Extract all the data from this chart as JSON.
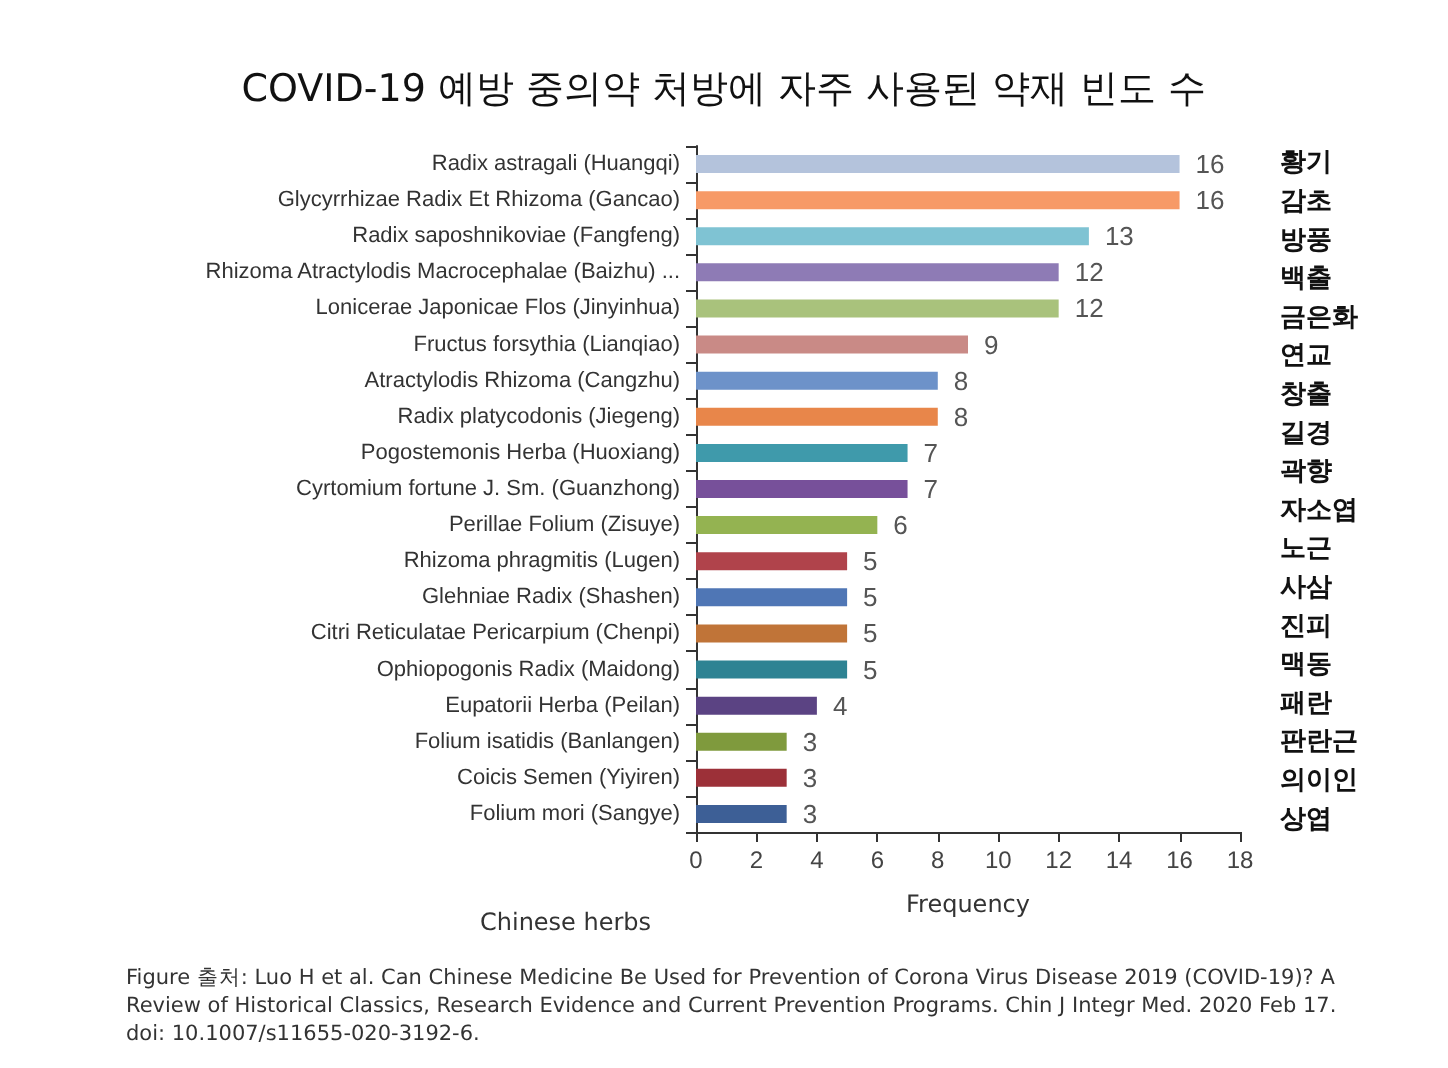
{
  "chart_data": {
    "type": "bar",
    "orientation": "horizontal",
    "title": "COVID-19 예방 중의약 처방에 자주 사용된 약재 빈도 수",
    "xlabel": "Frequency",
    "ylabel": "Chinese herbs",
    "categories": [
      "Radix astragali (Huangqi)",
      "Glycyrrhizae Radix Et Rhizoma (Gancao)",
      "Radix saposhnikoviae (Fangfeng)",
      "Rhizoma Atractylodis Macrocephalae (Baizhu) ...",
      "Lonicerae Japonicae Flos (Jinyinhua)",
      "Fructus forsythia (Lianqiao)",
      "Atractylodis Rhizoma (Cangzhu)",
      "Radix platycodonis (Jiegeng)",
      "Pogostemonis Herba (Huoxiang)",
      "Cyrtomium fortune J. Sm. (Guanzhong)",
      "Perillae Folium (Zisuye)",
      "Rhizoma phragmitis (Lugen)",
      "Glehniae Radix (Shashen)",
      "Citri Reticulatae Pericarpium (Chenpi)",
      "Ophiopogonis Radix (Maidong)",
      "Eupatorii Herba (Peilan)",
      "Folium isatidis (Banlangen)",
      "Coicis Semen (Yiyiren)",
      "Folium mori (Sangye)"
    ],
    "values": [
      16,
      16,
      13,
      12,
      12,
      9,
      8,
      8,
      7,
      7,
      6,
      5,
      5,
      5,
      5,
      4,
      3,
      3,
      3
    ],
    "colors": [
      "#b4c3dc",
      "#f79a67",
      "#7fc3d3",
      "#8e7bb5",
      "#a9c27c",
      "#c98a86",
      "#6d92c9",
      "#e8864a",
      "#3f9aab",
      "#77509a",
      "#94b351",
      "#b0434b",
      "#4f76b5",
      "#c07438",
      "#2e8393",
      "#5b4383",
      "#7f9a3d",
      "#9c3038",
      "#3d5f96"
    ],
    "data_labels": true,
    "xlim": [
      0,
      18
    ],
    "xticks": [
      0,
      2,
      4,
      6,
      8,
      10,
      12,
      14,
      16,
      18
    ],
    "grid": false,
    "annotations": [
      "황기\n감초\n방풍\n백출\n금은화\n연교\n창출\n길경\n곽향\n자소엽\n노근\n사삼\n진피\n맥동\n패란\n판란근\n의이인\n상엽",
      "Figure 출처: Luo H et al. Can Chinese Medicine Be Used for Prevention of Corona Virus Disease 2019 (COVID-19)? A Review of Historical Classics, Research Evidence and Current Prevention Programs. Chin J Integr Med. 2020 Feb 17. doi: 10.1007/s11655-020-3192-6."
    ]
  }
}
